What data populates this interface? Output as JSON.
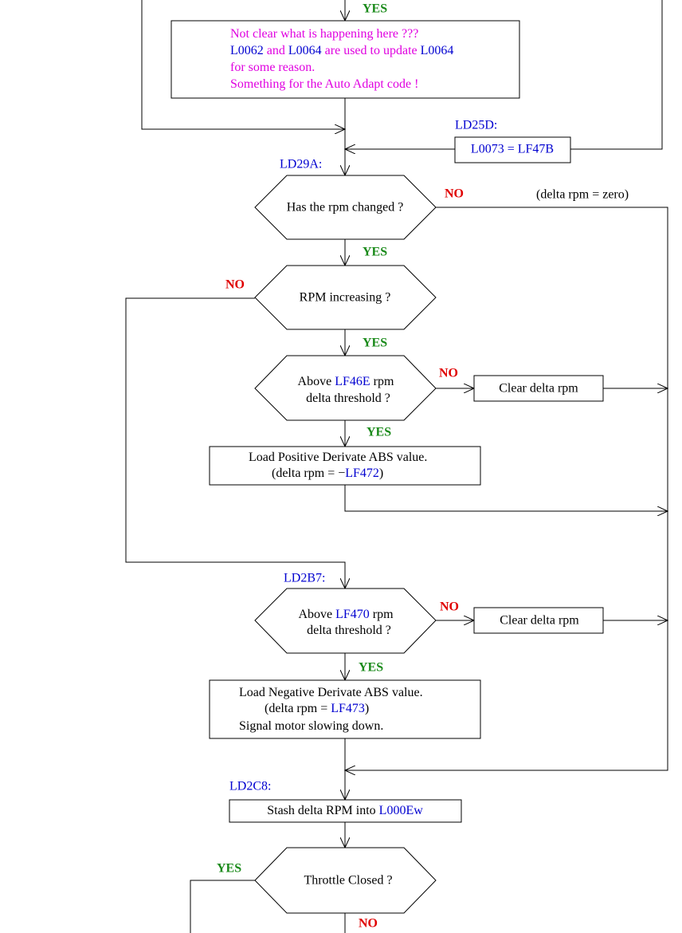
{
  "flow": {
    "entry_yes": "YES",
    "note": [
      [
        "Not clear what is happening here ???"
      ],
      [
        "L0062",
        " and ",
        "L0064",
        " are used to update ",
        "L0064"
      ],
      [
        "for some reason."
      ],
      [
        "Something for the Auto Adapt code !"
      ]
    ],
    "ld25d": {
      "label": "LD25D:",
      "box": "L0073 = LF47B"
    },
    "d1": {
      "label": "LD29A:",
      "text": "Has the rpm changed ?",
      "no": "NO",
      "no_note": "(delta rpm = zero)",
      "yes": "YES"
    },
    "d2": {
      "text": "RPM increasing ?",
      "no": "NO",
      "yes": "YES"
    },
    "d3": {
      "lines": [
        [
          "Above ",
          "LF46E",
          " rpm"
        ],
        [
          "delta threshold ?"
        ]
      ],
      "no": "NO",
      "no_box": "Clear delta rpm",
      "yes": "YES"
    },
    "pos": {
      "lines": [
        [
          "Load Positive Derivate ABS value."
        ],
        [
          "(delta rpm = −",
          "LF472",
          ")"
        ]
      ]
    },
    "d4": {
      "label": "LD2B7:",
      "lines": [
        [
          "Above ",
          "LF470",
          " rpm"
        ],
        [
          "delta threshold ?"
        ]
      ],
      "no": "NO",
      "no_box": "Clear delta rpm",
      "yes": "YES"
    },
    "neg": {
      "lines": [
        [
          "Load Negative Derivate ABS value."
        ],
        [
          "(delta rpm = ",
          "LF473",
          ")"
        ],
        [
          "Signal motor slowing down."
        ]
      ]
    },
    "stash": {
      "label": "LD2C8:",
      "lines": [
        [
          "Stash delta RPM into ",
          "L000Ew"
        ]
      ]
    },
    "d5": {
      "text": "Throttle Closed ?",
      "yes": "YES",
      "no": "NO"
    }
  }
}
